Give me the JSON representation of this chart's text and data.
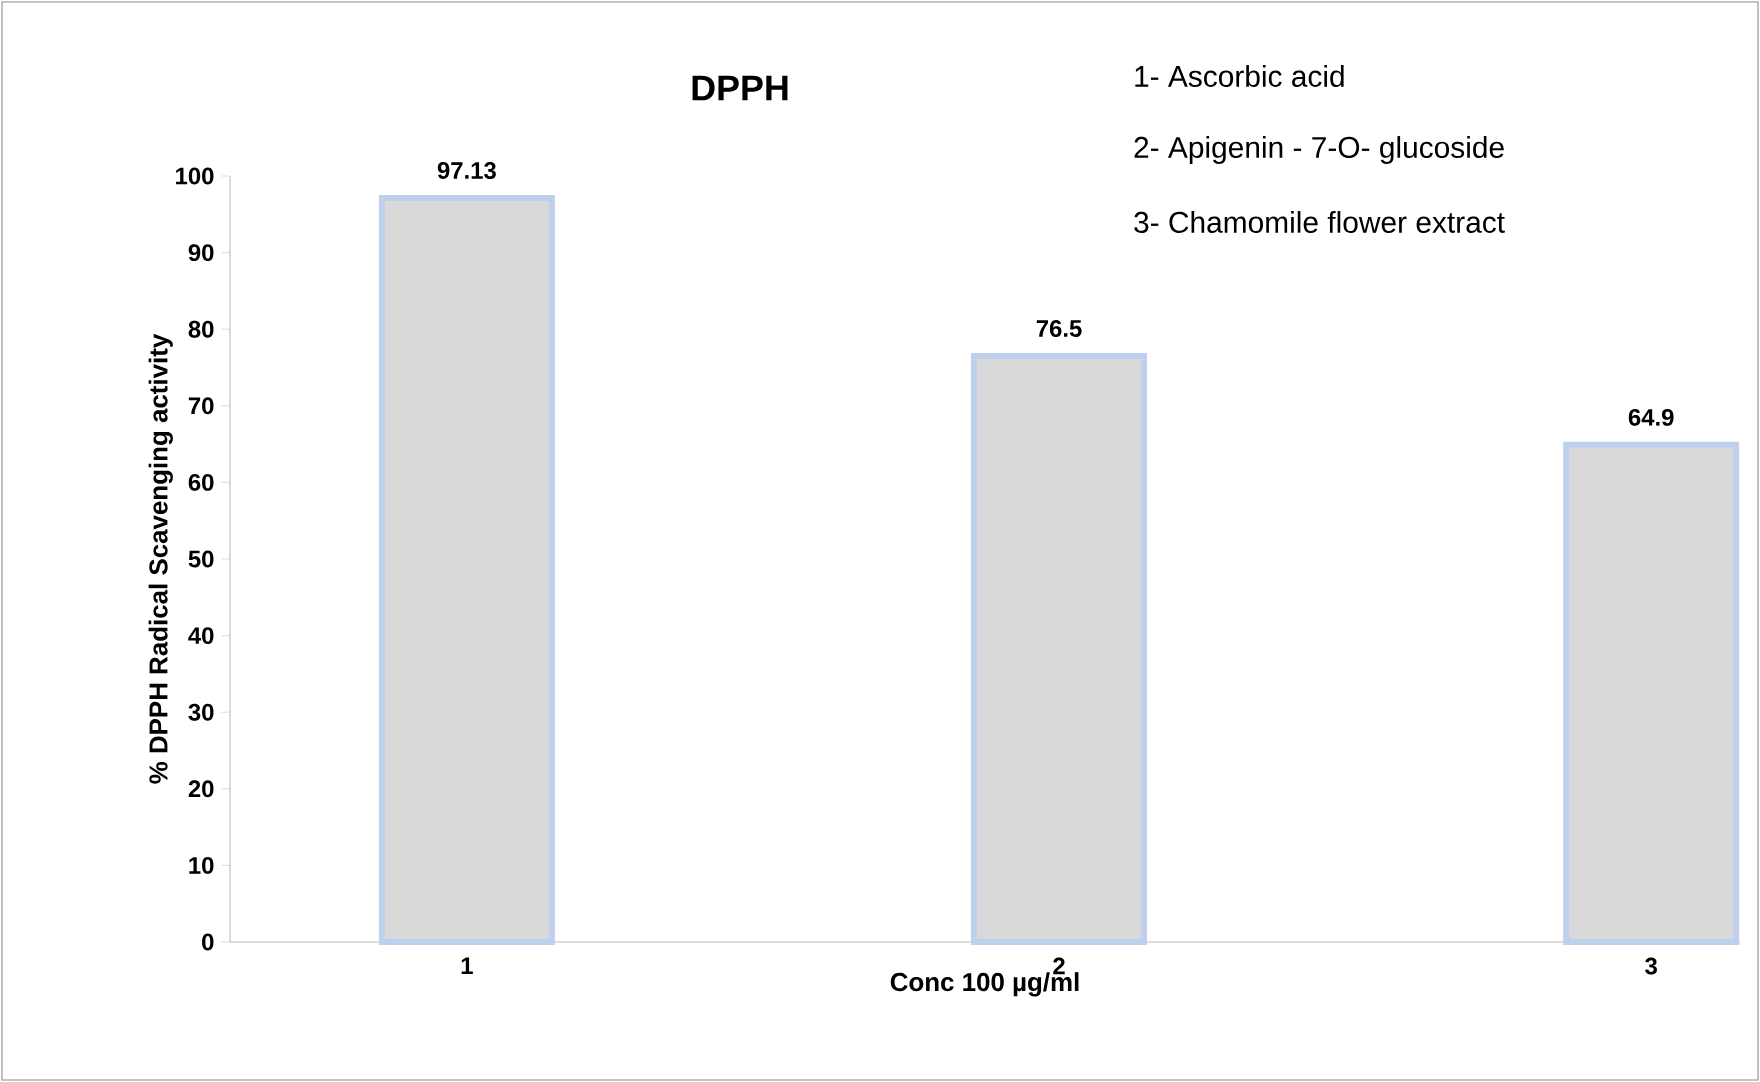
{
  "chart_data": {
    "type": "bar",
    "title": "DPPH",
    "xlabel": "Conc 100 µg/ml",
    "ylabel": "% DPPH Radical Scavenging activity",
    "categories": [
      "1",
      "2",
      "3"
    ],
    "values": [
      97.13,
      76.5,
      64.9
    ],
    "color": "#d9d9d9",
    "ylim": [
      0,
      100
    ],
    "yticks": [
      0,
      10,
      20,
      30,
      40,
      50,
      60,
      70,
      80,
      90,
      100
    ],
    "data_labels": true,
    "annotations": [
      "1- Ascorbic acid",
      "2- Apigenin - 7-O- glucoside",
      "3- Chamomile flower extract"
    ]
  }
}
